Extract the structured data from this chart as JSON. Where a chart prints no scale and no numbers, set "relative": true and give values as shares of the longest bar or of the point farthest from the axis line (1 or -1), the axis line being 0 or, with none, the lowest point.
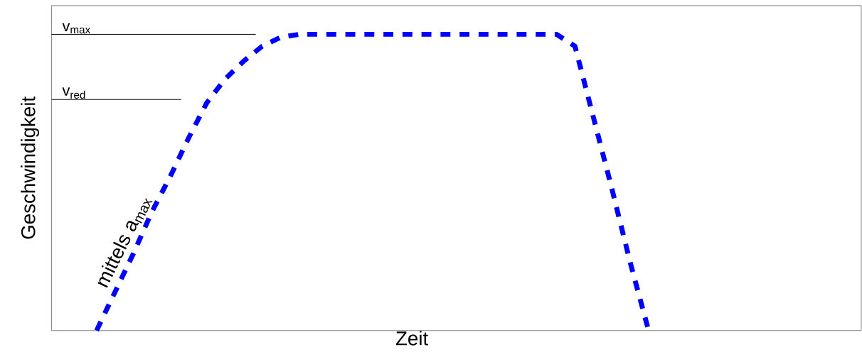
{
  "chart_data": {
    "type": "line",
    "relative": true,
    "xlabel": "Zeit",
    "ylabel": "Geschwindigkeit",
    "categories": [
      null,
      null,
      null,
      null,
      null,
      null,
      null,
      null,
      null,
      null,
      null,
      null,
      null,
      null,
      null,
      null,
      null,
      null,
      null,
      null,
      null,
      null,
      null,
      null,
      null,
      null,
      null,
      null,
      null,
      null,
      null
    ],
    "values": [
      0,
      0.13,
      0.26,
      0.4,
      0.52,
      0.65,
      0.77,
      0.85,
      0.91,
      0.96,
      0.99,
      1,
      1,
      1,
      1,
      1,
      1,
      1,
      1,
      1,
      1,
      1,
      1,
      1,
      1,
      1,
      0.96,
      0.72,
      0.48,
      0.23,
      0
    ],
    "color": "#0000ff",
    "line_style": "dashed",
    "ref_lines": [
      {
        "axis": "y",
        "value": 1,
        "label": "v$_{max}$",
        "color": "#000000"
      },
      {
        "axis": "y",
        "value": 0.78,
        "label": "v$_{red}$",
        "color": "#000000"
      }
    ],
    "annotations": [
      "mittels a$_{max}$"
    ]
  }
}
